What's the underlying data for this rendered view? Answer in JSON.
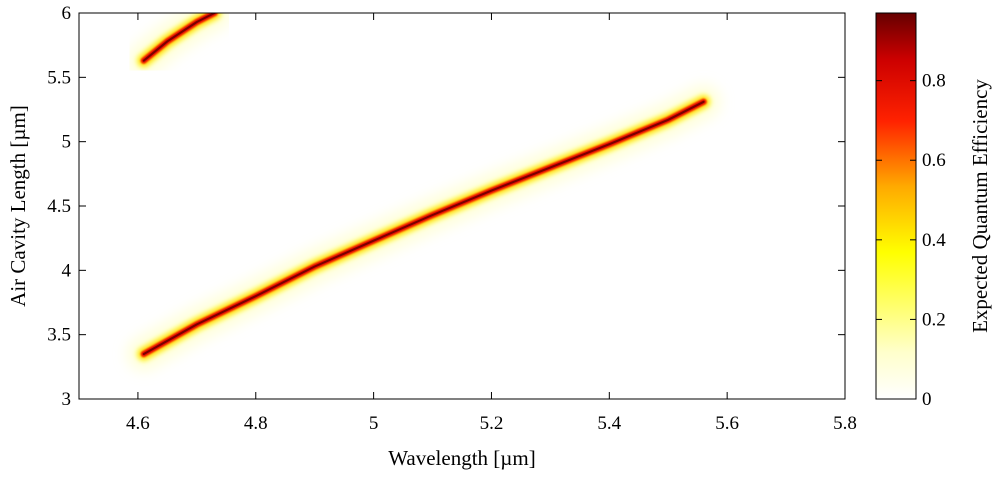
{
  "chart_data": {
    "type": "heatmap",
    "title": "",
    "xlabel": "Wavelength [µm]",
    "ylabel": "Air Cavity Length [µm]",
    "xlim": [
      4.5,
      5.8
    ],
    "ylim": [
      3,
      6
    ],
    "x_ticks": [
      4.6,
      4.8,
      5,
      5.2,
      5.4,
      5.6,
      5.8
    ],
    "x_tick_labels": [
      "4.6",
      "4.8",
      "5",
      "5.2",
      "5.4",
      "5.6",
      "5.8"
    ],
    "y_ticks": [
      3,
      3.5,
      4,
      4.5,
      5,
      5.5,
      6
    ],
    "y_tick_labels": [
      "3",
      "3.5",
      "4",
      "4.5",
      "5",
      "5.5",
      "6"
    ],
    "colorbar": {
      "label": "Expected Quantum Efficiency",
      "range": [
        0,
        0.97
      ],
      "ticks": [
        0,
        0.2,
        0.4,
        0.6,
        0.8
      ],
      "tick_labels": [
        "0",
        "0.2",
        "0.4",
        "0.6",
        "0.8"
      ],
      "colormap": "hot (inverted)",
      "color_stops": [
        "#ffffff",
        "#ffff99",
        "#ffff00",
        "#ffaa00",
        "#ff0000",
        "#cc0000",
        "#660000"
      ]
    },
    "series": [
      {
        "x": [
          4.61,
          4.7,
          4.8,
          4.9,
          5.0,
          5.1,
          5.2,
          5.3,
          5.4,
          5.5,
          5.56
        ],
        "y": [
          3.35,
          3.58,
          3.8,
          4.03,
          4.23,
          4.43,
          4.62,
          4.8,
          4.98,
          5.17,
          5.31
        ],
        "peak": 0.97
      },
      {
        "x": [
          4.61,
          4.65,
          4.7,
          4.73
        ],
        "y": [
          5.63,
          5.78,
          5.93,
          6.0
        ],
        "peak": 0.97
      }
    ],
    "grid": false
  }
}
